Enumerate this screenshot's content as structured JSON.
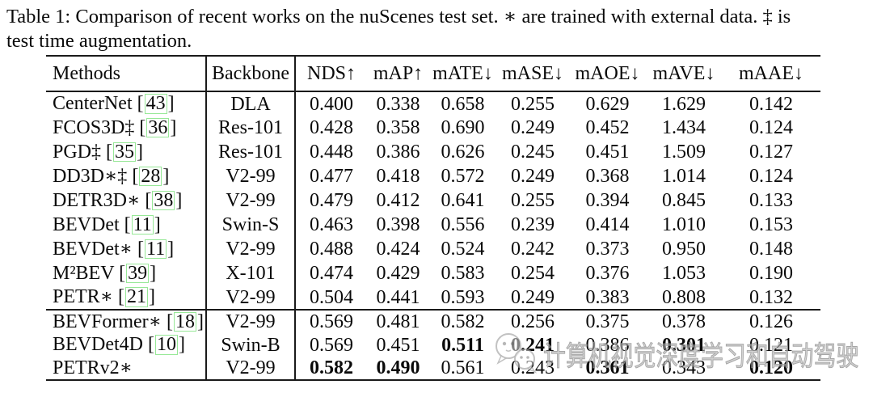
{
  "caption": {
    "line1": "Table 1: Comparison of recent works on the nuScenes test set. ∗ are trained with external data. ‡ is",
    "line2": "test time augmentation."
  },
  "table": {
    "citation_brackets": [
      "[",
      "]"
    ],
    "headers": [
      "Methods",
      "Backbone",
      "NDS↑",
      "mAP↑",
      "mATE↓",
      "mASE↓",
      "mAOE↓",
      "mAVE↓",
      "mAAE↓"
    ],
    "groups": [
      {
        "rows": [
          {
            "method": "CenterNet",
            "cite": "43",
            "backbone": "DLA",
            "values": [
              "0.400",
              "0.338",
              "0.658",
              "0.255",
              "0.629",
              "1.629",
              "0.142"
            ],
            "bold": [
              false,
              false,
              false,
              false,
              false,
              false,
              false
            ]
          },
          {
            "method": "FCOS3D‡",
            "cite": "36",
            "backbone": "Res-101",
            "values": [
              "0.428",
              "0.358",
              "0.690",
              "0.249",
              "0.452",
              "1.434",
              "0.124"
            ],
            "bold": [
              false,
              false,
              false,
              false,
              false,
              false,
              false
            ]
          },
          {
            "method": "PGD‡",
            "cite": "35",
            "backbone": "Res-101",
            "values": [
              "0.448",
              "0.386",
              "0.626",
              "0.245",
              "0.451",
              "1.509",
              "0.127"
            ],
            "bold": [
              false,
              false,
              false,
              false,
              false,
              false,
              false
            ]
          },
          {
            "method": "DD3D∗‡",
            "cite": "28",
            "backbone": "V2-99",
            "values": [
              "0.477",
              "0.418",
              "0.572",
              "0.249",
              "0.368",
              "1.014",
              "0.124"
            ],
            "bold": [
              false,
              false,
              false,
              false,
              false,
              false,
              false
            ]
          },
          {
            "method": "DETR3D∗",
            "cite": "38",
            "backbone": "V2-99",
            "values": [
              "0.479",
              "0.412",
              "0.641",
              "0.255",
              "0.394",
              "0.845",
              "0.133"
            ],
            "bold": [
              false,
              false,
              false,
              false,
              false,
              false,
              false
            ]
          },
          {
            "method": "BEVDet",
            "cite": "11",
            "backbone": "Swin-S",
            "values": [
              "0.463",
              "0.398",
              "0.556",
              "0.239",
              "0.414",
              "1.010",
              "0.153"
            ],
            "bold": [
              false,
              false,
              false,
              false,
              false,
              false,
              false
            ]
          },
          {
            "method": "BEVDet∗",
            "cite": "11",
            "backbone": "V2-99",
            "values": [
              "0.488",
              "0.424",
              "0.524",
              "0.242",
              "0.373",
              "0.950",
              "0.148"
            ],
            "bold": [
              false,
              false,
              false,
              false,
              false,
              false,
              false
            ]
          },
          {
            "method": "M²BEV",
            "cite": "39",
            "backbone": "X-101",
            "values": [
              "0.474",
              "0.429",
              "0.583",
              "0.254",
              "0.376",
              "1.053",
              "0.190"
            ],
            "bold": [
              false,
              false,
              false,
              false,
              false,
              false,
              false
            ]
          },
          {
            "method": "PETR∗",
            "cite": "21",
            "backbone": "V2-99",
            "values": [
              "0.504",
              "0.441",
              "0.593",
              "0.249",
              "0.383",
              "0.808",
              "0.132"
            ],
            "bold": [
              false,
              false,
              false,
              false,
              false,
              false,
              false
            ]
          }
        ]
      },
      {
        "rows": [
          {
            "method": "BEVFormer∗",
            "cite": "18",
            "backbone": "V2-99",
            "values": [
              "0.569",
              "0.481",
              "0.582",
              "0.256",
              "0.375",
              "0.378",
              "0.126"
            ],
            "bold": [
              false,
              false,
              false,
              false,
              false,
              false,
              false
            ]
          },
          {
            "method": "BEVDet4D",
            "cite": "10",
            "backbone": "Swin-B",
            "values": [
              "0.569",
              "0.451",
              "0.511",
              "0.241",
              "0.386",
              "0.301",
              "0.121"
            ],
            "bold": [
              false,
              false,
              true,
              true,
              false,
              true,
              false
            ]
          },
          {
            "method": "PETRv2∗",
            "cite": null,
            "backbone": "V2-99",
            "values": [
              "0.582",
              "0.490",
              "0.561",
              "0.243",
              "0.361",
              "0.343",
              "0.120"
            ],
            "bold": [
              true,
              true,
              false,
              false,
              true,
              false,
              true
            ]
          }
        ]
      }
    ]
  },
  "watermark": {
    "text": "计算机视觉深度学习和自动驾驶",
    "logo": "wechat-icon",
    "color": "#adadad"
  }
}
